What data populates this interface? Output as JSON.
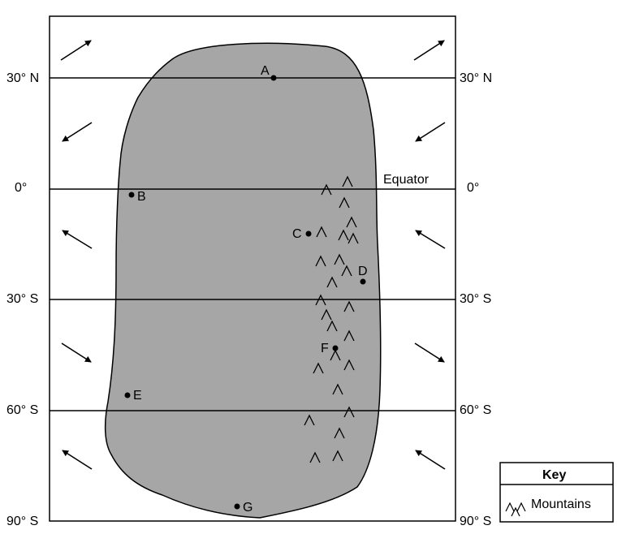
{
  "latitudes": [
    {
      "left": "30° N",
      "right": "30° N"
    },
    {
      "left": "0°",
      "right": "0°"
    },
    {
      "left": "30° S",
      "right": "30° S"
    },
    {
      "left": "60° S",
      "right": "60° S"
    },
    {
      "left": "90° S",
      "right": "90° S"
    }
  ],
  "equator_label": "Equator",
  "points": [
    {
      "id": "A",
      "label": "A"
    },
    {
      "id": "B",
      "label": "B"
    },
    {
      "id": "C",
      "label": "C"
    },
    {
      "id": "D",
      "label": "D"
    },
    {
      "id": "E",
      "label": "E"
    },
    {
      "id": "F",
      "label": "F"
    },
    {
      "id": "G",
      "label": "G"
    }
  ],
  "key": {
    "title": "Key",
    "mountains_label": "Mountains"
  },
  "wind_arrows": {
    "30-60N": "toward-northeast",
    "0-30N": "toward-southwest",
    "0-30S": "toward-northwest",
    "30-60S": "toward-southeast",
    "60-90S": "toward-northwest"
  },
  "colors": {
    "continent_fill": "#a6a6a6",
    "line": "#000000",
    "background": "#ffffff"
  }
}
